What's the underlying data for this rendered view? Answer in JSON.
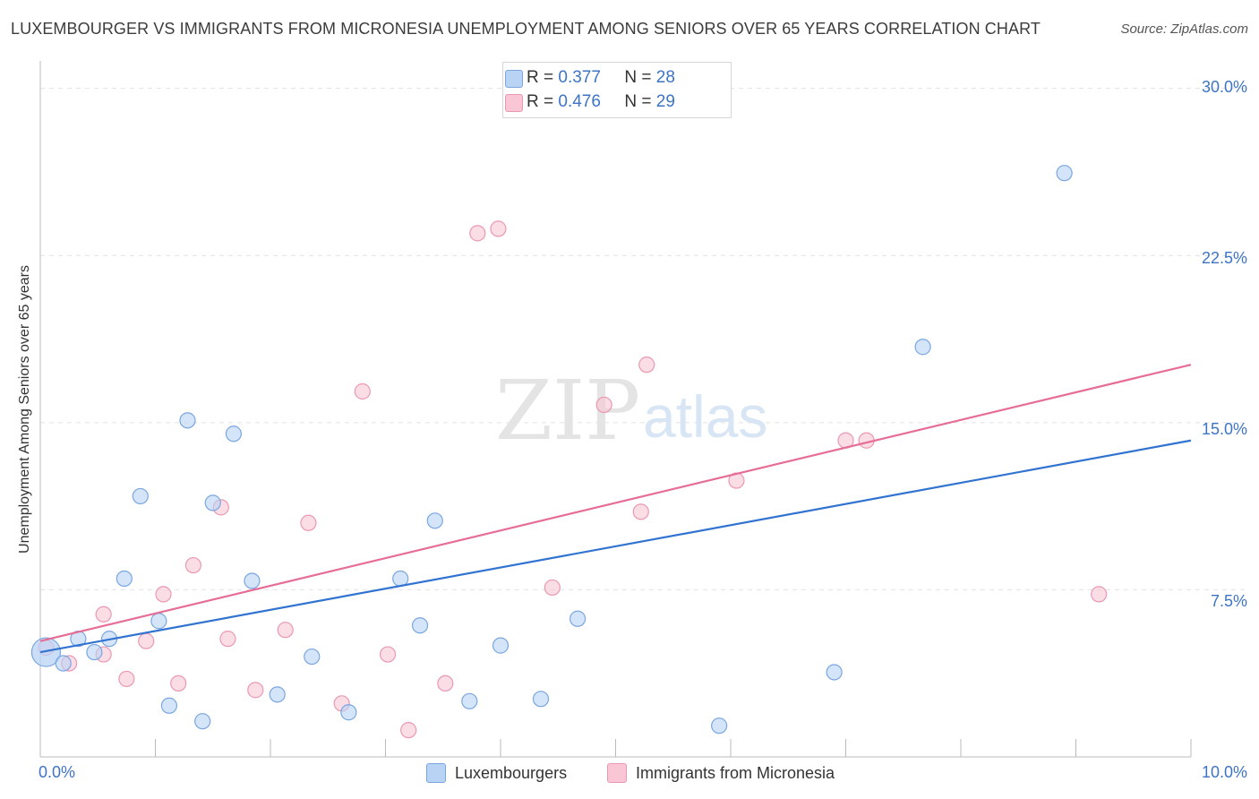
{
  "title": "LUXEMBOURGER VS IMMIGRANTS FROM MICRONESIA UNEMPLOYMENT AMONG SENIORS OVER 65 YEARS CORRELATION CHART",
  "source": "Source: ZipAtlas.com",
  "watermark": {
    "zip": "ZIP",
    "atlas": "atlas"
  },
  "legend_top": {
    "r_label": "R = ",
    "n_label": "N = ",
    "rows": [
      {
        "r": "0.377",
        "n": "28"
      },
      {
        "r": "0.476",
        "n": "29"
      }
    ]
  },
  "colors": {
    "series1_fill": "#b9d3f5",
    "series1_stroke": "#7aa6e0",
    "series1_line": "#3173d1",
    "series2_fill": "#f9c6d5",
    "series2_stroke": "#ea98b2",
    "series2_line": "#e66d96",
    "tick_label": "#3d74c4",
    "grid": "#e2e2e2"
  },
  "chart_data": {
    "type": "scatter",
    "title": "LUXEMBOURGER VS IMMIGRANTS FROM MICRONESIA UNEMPLOYMENT AMONG SENIORS OVER 65 YEARS CORRELATION CHART",
    "xlabel": "",
    "ylabel": "Unemployment Among Seniors over 65 years",
    "xlim": [
      0,
      10
    ],
    "ylim": [
      0,
      30.75
    ],
    "x_tick_labels": [
      "0.0%",
      "10.0%"
    ],
    "y_ticks": [
      7.5,
      15.0,
      22.5,
      30.0
    ],
    "y_tick_labels": [
      "7.5%",
      "15.0%",
      "22.5%",
      "30.0%"
    ],
    "series": [
      {
        "name": "Luxembourgers",
        "r": 0.377,
        "n": 28,
        "trend": {
          "x": [
            0,
            10
          ],
          "y": [
            4.7,
            14.2
          ]
        },
        "points": [
          {
            "x": 0.05,
            "y": 4.7,
            "big": true
          },
          {
            "x": 0.2,
            "y": 4.2
          },
          {
            "x": 0.33,
            "y": 5.3
          },
          {
            "x": 0.47,
            "y": 4.7
          },
          {
            "x": 0.6,
            "y": 5.3
          },
          {
            "x": 0.73,
            "y": 8.0
          },
          {
            "x": 0.87,
            "y": 11.7
          },
          {
            "x": 1.03,
            "y": 6.1
          },
          {
            "x": 1.12,
            "y": 2.3
          },
          {
            "x": 1.28,
            "y": 15.1
          },
          {
            "x": 1.41,
            "y": 1.6
          },
          {
            "x": 1.5,
            "y": 11.4
          },
          {
            "x": 1.68,
            "y": 14.5
          },
          {
            "x": 1.84,
            "y": 7.9
          },
          {
            "x": 2.06,
            "y": 2.8
          },
          {
            "x": 2.36,
            "y": 4.5
          },
          {
            "x": 2.68,
            "y": 2.0
          },
          {
            "x": 3.13,
            "y": 8.0
          },
          {
            "x": 3.3,
            "y": 5.9
          },
          {
            "x": 3.43,
            "y": 10.6
          },
          {
            "x": 3.73,
            "y": 2.5
          },
          {
            "x": 4.0,
            "y": 5.0
          },
          {
            "x": 4.35,
            "y": 2.6
          },
          {
            "x": 4.67,
            "y": 6.2
          },
          {
            "x": 5.9,
            "y": 1.4
          },
          {
            "x": 6.9,
            "y": 3.8
          },
          {
            "x": 7.67,
            "y": 18.4
          },
          {
            "x": 8.9,
            "y": 26.2
          }
        ]
      },
      {
        "name": "Immigrants from Micronesia",
        "r": 0.476,
        "n": 29,
        "trend": {
          "x": [
            0,
            10
          ],
          "y": [
            5.2,
            17.6
          ]
        },
        "points": [
          {
            "x": 0.05,
            "y": 4.9
          },
          {
            "x": 0.25,
            "y": 4.2
          },
          {
            "x": 0.55,
            "y": 4.6
          },
          {
            "x": 0.55,
            "y": 6.4
          },
          {
            "x": 0.75,
            "y": 3.5
          },
          {
            "x": 0.92,
            "y": 5.2
          },
          {
            "x": 1.07,
            "y": 7.3
          },
          {
            "x": 1.2,
            "y": 3.3
          },
          {
            "x": 1.33,
            "y": 8.6
          },
          {
            "x": 1.57,
            "y": 11.2
          },
          {
            "x": 1.63,
            "y": 5.3
          },
          {
            "x": 1.87,
            "y": 3.0
          },
          {
            "x": 2.13,
            "y": 5.7
          },
          {
            "x": 2.33,
            "y": 10.5
          },
          {
            "x": 2.62,
            "y": 2.4
          },
          {
            "x": 2.8,
            "y": 16.4
          },
          {
            "x": 3.02,
            "y": 4.6
          },
          {
            "x": 3.2,
            "y": 1.2
          },
          {
            "x": 3.52,
            "y": 3.3
          },
          {
            "x": 3.8,
            "y": 23.5
          },
          {
            "x": 3.98,
            "y": 23.7
          },
          {
            "x": 4.45,
            "y": 7.6
          },
          {
            "x": 4.9,
            "y": 15.8
          },
          {
            "x": 5.22,
            "y": 11.0
          },
          {
            "x": 5.27,
            "y": 17.6
          },
          {
            "x": 6.05,
            "y": 12.4
          },
          {
            "x": 7.0,
            "y": 14.2
          },
          {
            "x": 7.18,
            "y": 14.2
          },
          {
            "x": 9.2,
            "y": 7.3
          }
        ]
      }
    ]
  }
}
